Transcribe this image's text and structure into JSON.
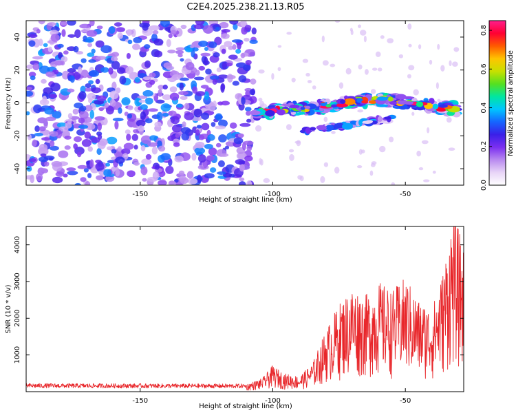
{
  "title": "C2E4.2025.238.21.13.R05",
  "colors": {
    "snr_line": "#e8262a",
    "axis": "#000000",
    "gradient": [
      "#ffffff",
      "#e8d5f7",
      "#b98af0",
      "#7b2ff0",
      "#3a20e8",
      "#1565ff",
      "#00c6ff",
      "#00e6a0",
      "#55e020",
      "#c8e000",
      "#ffc400",
      "#ff5a00",
      "#ff0033",
      "#ff1e8c"
    ]
  },
  "chart_data": [
    {
      "type": "heatmap",
      "xlabel": "Height of straight line (km)",
      "ylabel": "Frequency (Hz)",
      "xlim": [
        -193,
        -28
      ],
      "ylim": [
        -50,
        50
      ],
      "xticks": [
        -150,
        -100,
        -50
      ],
      "yticks": [
        -40,
        -20,
        0,
        20,
        40
      ],
      "colorbar": {
        "label": "Normalized spectral amplitude",
        "range": [
          0.0,
          0.85
        ],
        "ticks": [
          "0.0",
          "0.2",
          "0.4",
          "0.6",
          "0.8"
        ]
      },
      "signal_ridge": [
        {
          "x": -107,
          "y": -6
        },
        {
          "x": -95,
          "y": -4
        },
        {
          "x": -80,
          "y": -2
        },
        {
          "x": -70,
          "y": 1
        },
        {
          "x": -60,
          "y": 2
        },
        {
          "x": -50,
          "y": 0
        },
        {
          "x": -40,
          "y": -2
        },
        {
          "x": -30,
          "y": -4
        }
      ],
      "secondary_ridge": [
        {
          "x": -88,
          "y": -17
        },
        {
          "x": -75,
          "y": -14
        },
        {
          "x": -62,
          "y": -11
        },
        {
          "x": -55,
          "y": -10
        }
      ],
      "noise_region_x": [
        -193,
        -107
      ]
    },
    {
      "type": "line",
      "xlabel": "Height of straight line (km)",
      "ylabel": "SNR (10 * v/v)",
      "xlim": [
        -193,
        -28
      ],
      "ylim": [
        0,
        4500
      ],
      "xticks": [
        -150,
        -100,
        -50
      ],
      "yticks": [
        1000,
        2000,
        3000,
        4000
      ],
      "series": [
        {
          "name": "SNR",
          "envelope": [
            {
              "x": -193,
              "y": 180
            },
            {
              "x": -110,
              "y": 170
            },
            {
              "x": -104,
              "y": 300
            },
            {
              "x": -100,
              "y": 600
            },
            {
              "x": -96,
              "y": 420
            },
            {
              "x": -90,
              "y": 350
            },
            {
              "x": -85,
              "y": 650
            },
            {
              "x": -80,
              "y": 1400
            },
            {
              "x": -75,
              "y": 2000
            },
            {
              "x": -70,
              "y": 2400
            },
            {
              "x": -65,
              "y": 2200
            },
            {
              "x": -60,
              "y": 2500
            },
            {
              "x": -55,
              "y": 2300
            },
            {
              "x": -50,
              "y": 2600
            },
            {
              "x": -45,
              "y": 2100
            },
            {
              "x": -40,
              "y": 1900
            },
            {
              "x": -36,
              "y": 2700
            },
            {
              "x": -32,
              "y": 4100
            },
            {
              "x": -28,
              "y": 3300
            }
          ]
        }
      ]
    }
  ]
}
